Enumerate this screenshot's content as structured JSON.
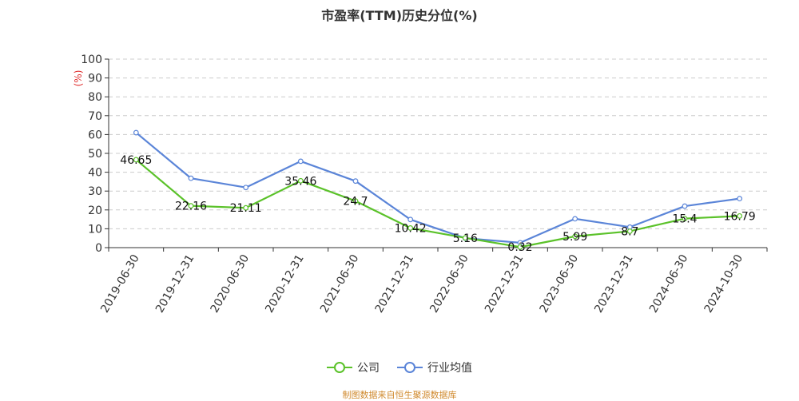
{
  "chart_data": {
    "type": "line",
    "title": "市盈率(TTM)历史分位(%)",
    "ylabel": "(%)",
    "ylim": [
      0,
      100
    ],
    "yticks": [
      0,
      10,
      20,
      30,
      40,
      50,
      60,
      70,
      80,
      90,
      100
    ],
    "categories": [
      "2019-06-30",
      "2019-12-31",
      "2020-06-30",
      "2020-12-31",
      "2021-06-30",
      "2021-12-31",
      "2022-06-30",
      "2022-12-31",
      "2023-06-30",
      "2023-12-31",
      "2024-06-30",
      "2024-10-30"
    ],
    "grid": true,
    "legend_position": "bottom",
    "series": [
      {
        "name": "公司",
        "color": "#5bc22a",
        "values": [
          46.65,
          22.16,
          21.11,
          35.46,
          24.7,
          10.42,
          5.16,
          0.32,
          5.99,
          8.7,
          15.4,
          16.79
        ],
        "labels": [
          "46.65",
          "22.16",
          "21.11",
          "35.46",
          "24.7",
          "10.42",
          "5.16",
          "0.32",
          "5.99",
          "8.7",
          "15.4",
          "16.79"
        ]
      },
      {
        "name": "行业均值",
        "color": "#5b85d8",
        "values": [
          61,
          36.8,
          31.9,
          45.8,
          35.3,
          14.9,
          5.0,
          2.6,
          15.3,
          10.9,
          22.0,
          26.0
        ]
      }
    ]
  },
  "source_text": "制图数据来自恒生聚源数据库"
}
